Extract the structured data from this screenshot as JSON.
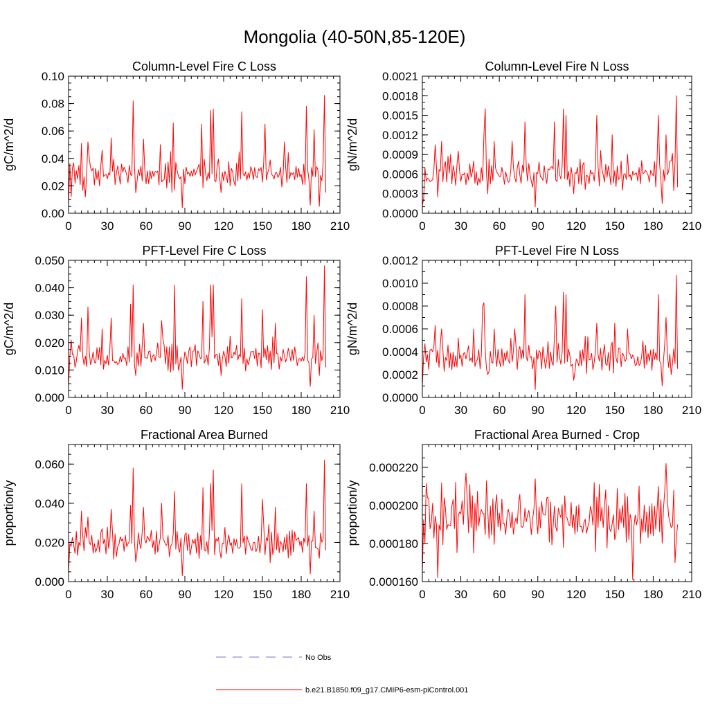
{
  "figure_title": "Mongolia (40-50N,85-120E)",
  "colors": {
    "model": "#ff0000",
    "obs": "#7070d0"
  },
  "legend": {
    "obs_label": "No Obs",
    "model_label": "b.e21.B1850.f09_g17.CMIP6-esm-piControl.001"
  },
  "chart_data": [
    {
      "type": "line",
      "title": "Column-Level Fire C Loss",
      "xlabel": "",
      "ylabel": "gC/m^2/d",
      "xlim": [
        0,
        210
      ],
      "ylim": [
        0,
        0.1
      ],
      "xticks": [
        0,
        30,
        60,
        90,
        120,
        150,
        180,
        210
      ],
      "xtick_labels": [
        "0",
        "30",
        "60",
        "90",
        "120",
        "150",
        "180",
        "210"
      ],
      "yticks": [
        0,
        0.02,
        0.04,
        0.06,
        0.08,
        0.1
      ],
      "ytick_labels": [
        "0.00",
        "0.02",
        "0.04",
        "0.06",
        "0.08",
        "0.10"
      ],
      "yminor": 0.005,
      "series_seed": 11,
      "anchors": [
        [
          0,
          0.006
        ],
        [
          2,
          0.012
        ],
        [
          3,
          0.033
        ],
        [
          8,
          0.035
        ],
        [
          10,
          0.051
        ],
        [
          13,
          0.012
        ],
        [
          15,
          0.052
        ],
        [
          26,
          0.046
        ],
        [
          33,
          0.055
        ],
        [
          47,
          0.035
        ],
        [
          50,
          0.082
        ],
        [
          52,
          0.015
        ],
        [
          58,
          0.054
        ],
        [
          71,
          0.05
        ],
        [
          81,
          0.066
        ],
        [
          86,
          0.025
        ],
        [
          88,
          0.004
        ],
        [
          100,
          0.033
        ],
        [
          103,
          0.065
        ],
        [
          110,
          0.075
        ],
        [
          112,
          0.076
        ],
        [
          118,
          0.015
        ],
        [
          128,
          0.023
        ],
        [
          134,
          0.074
        ],
        [
          152,
          0.065
        ],
        [
          167,
          0.052
        ],
        [
          184,
          0.078
        ],
        [
          187,
          0.006
        ],
        [
          190,
          0.061
        ],
        [
          194,
          0.005
        ],
        [
          198,
          0.086
        ],
        [
          199,
          0.015
        ]
      ],
      "series": [
        {
          "name": "b.e21.B1850.f09_g17.CMIP6-esm-piControl.001",
          "base": 0.028,
          "amp": 0.012,
          "min": 0.008,
          "max": 0.058
        }
      ]
    },
    {
      "type": "line",
      "title": "Column-Level Fire N Loss",
      "xlabel": "",
      "ylabel": "gN/m^2/d",
      "xlim": [
        0,
        210
      ],
      "ylim": [
        0,
        0.0021
      ],
      "xticks": [
        0,
        30,
        60,
        90,
        120,
        150,
        180,
        210
      ],
      "xtick_labels": [
        "0",
        "30",
        "60",
        "90",
        "120",
        "150",
        "180",
        "210"
      ],
      "yticks": [
        0,
        0.0003,
        0.0006,
        0.0009,
        0.0012,
        0.0015,
        0.0018,
        0.0021
      ],
      "ytick_labels": [
        "0.0000",
        "0.0003",
        "0.0006",
        "0.0009",
        "0.0012",
        "0.0015",
        "0.0018",
        "0.0021"
      ],
      "yminor": 0.0001,
      "series_seed": 23,
      "anchors": [
        [
          0,
          0.00012
        ],
        [
          1,
          0.00022
        ],
        [
          2,
          0.0007
        ],
        [
          7,
          0.0005
        ],
        [
          10,
          0.00105
        ],
        [
          12,
          0.00025
        ],
        [
          15,
          0.0011
        ],
        [
          22,
          0.0009
        ],
        [
          28,
          0.00095
        ],
        [
          40,
          0.0008
        ],
        [
          48,
          0.0012
        ],
        [
          49,
          0.0016
        ],
        [
          51,
          0.0003
        ],
        [
          56,
          0.0011
        ],
        [
          70,
          0.0011
        ],
        [
          80,
          0.0014
        ],
        [
          86,
          0.0004
        ],
        [
          88,
          0.0001
        ],
        [
          100,
          0.0007
        ],
        [
          103,
          0.0014
        ],
        [
          110,
          0.0016
        ],
        [
          112,
          0.0015
        ],
        [
          118,
          0.0003
        ],
        [
          136,
          0.0015
        ],
        [
          148,
          0.0012
        ],
        [
          160,
          0.0009
        ],
        [
          184,
          0.0015
        ],
        [
          187,
          0.00015
        ],
        [
          190,
          0.0012
        ],
        [
          194,
          0.0008
        ],
        [
          198,
          0.0018
        ],
        [
          199,
          0.0004
        ]
      ],
      "series": [
        {
          "name": "b.e21.B1850.f09_g17.CMIP6-esm-piControl.001",
          "base": 0.00058,
          "amp": 0.00024,
          "min": 0.00018,
          "max": 0.00115
        }
      ]
    },
    {
      "type": "line",
      "title": "PFT-Level Fire C Loss",
      "xlabel": "",
      "ylabel": "gC/m^2/d",
      "xlim": [
        0,
        210
      ],
      "ylim": [
        0,
        0.05
      ],
      "xticks": [
        0,
        30,
        60,
        90,
        120,
        150,
        180,
        210
      ],
      "xtick_labels": [
        "0",
        "30",
        "60",
        "90",
        "120",
        "150",
        "180",
        "210"
      ],
      "yticks": [
        0,
        0.01,
        0.02,
        0.03,
        0.04,
        0.05
      ],
      "ytick_labels": [
        "0.000",
        "0.010",
        "0.020",
        "0.030",
        "0.040",
        "0.050"
      ],
      "yminor": 0.0025,
      "series_seed": 37,
      "anchors": [
        [
          0,
          0.004
        ],
        [
          2,
          0.021
        ],
        [
          8,
          0.019
        ],
        [
          10,
          0.029
        ],
        [
          15,
          0.033
        ],
        [
          26,
          0.025
        ],
        [
          33,
          0.029
        ],
        [
          48,
          0.034
        ],
        [
          50,
          0.041
        ],
        [
          52,
          0.008
        ],
        [
          58,
          0.027
        ],
        [
          72,
          0.028
        ],
        [
          82,
          0.041
        ],
        [
          86,
          0.012
        ],
        [
          88,
          0.003
        ],
        [
          100,
          0.017
        ],
        [
          104,
          0.035
        ],
        [
          110,
          0.041
        ],
        [
          112,
          0.041
        ],
        [
          118,
          0.008
        ],
        [
          134,
          0.036
        ],
        [
          150,
          0.032
        ],
        [
          160,
          0.027
        ],
        [
          184,
          0.044
        ],
        [
          187,
          0.004
        ],
        [
          190,
          0.03
        ],
        [
          194,
          0.008
        ],
        [
          198,
          0.048
        ],
        [
          199,
          0.011
        ]
      ],
      "series": [
        {
          "name": "b.e21.B1850.f09_g17.CMIP6-esm-piControl.001",
          "base": 0.0145,
          "amp": 0.006,
          "min": 0.005,
          "max": 0.03
        }
      ]
    },
    {
      "type": "line",
      "title": "PFT-Level Fire N Loss",
      "xlabel": "",
      "ylabel": "gN/m^2/d",
      "xlim": [
        0,
        210
      ],
      "ylim": [
        0,
        0.0012
      ],
      "xticks": [
        0,
        30,
        60,
        90,
        120,
        150,
        180,
        210
      ],
      "xtick_labels": [
        "0",
        "30",
        "60",
        "90",
        "120",
        "150",
        "180",
        "210"
      ],
      "yticks": [
        0,
        0.0002,
        0.0004,
        0.0006,
        0.0008,
        0.001,
        0.0012
      ],
      "ytick_labels": [
        "0.0000",
        "0.0002",
        "0.0004",
        "0.0006",
        "0.0008",
        "0.0010",
        "0.0012"
      ],
      "yminor": 0.0001,
      "series_seed": 53,
      "anchors": [
        [
          0,
          0.0001
        ],
        [
          2,
          0.00047
        ],
        [
          8,
          0.0004
        ],
        [
          10,
          0.00063
        ],
        [
          15,
          0.0006
        ],
        [
          28,
          0.00052
        ],
        [
          40,
          0.0006
        ],
        [
          47,
          0.0008
        ],
        [
          48,
          0.00083
        ],
        [
          51,
          0.0002
        ],
        [
          56,
          0.0006
        ],
        [
          72,
          0.0006
        ],
        [
          80,
          0.0009
        ],
        [
          86,
          0.00025
        ],
        [
          88,
          7e-05
        ],
        [
          100,
          0.0004
        ],
        [
          104,
          0.0008
        ],
        [
          110,
          0.00092
        ],
        [
          112,
          0.0009
        ],
        [
          118,
          0.00015
        ],
        [
          136,
          0.00065
        ],
        [
          150,
          0.00065
        ],
        [
          160,
          0.0006
        ],
        [
          184,
          0.0009
        ],
        [
          187,
          0.0001
        ],
        [
          190,
          0.0007
        ],
        [
          194,
          0.0002
        ],
        [
          198,
          0.00107
        ],
        [
          199,
          0.00025
        ]
      ],
      "series": [
        {
          "name": "b.e21.B1850.f09_g17.CMIP6-esm-piControl.001",
          "base": 0.00034,
          "amp": 0.00014,
          "min": 0.00012,
          "max": 0.00066
        }
      ]
    },
    {
      "type": "line",
      "title": "Fractional Area Burned",
      "xlabel": "",
      "ylabel": "proportion/y",
      "xlim": [
        0,
        210
      ],
      "ylim": [
        0,
        0.07
      ],
      "xticks": [
        0,
        30,
        60,
        90,
        120,
        150,
        180,
        210
      ],
      "xtick_labels": [
        "0",
        "30",
        "60",
        "90",
        "120",
        "150",
        "180",
        "210"
      ],
      "yticks": [
        0,
        0.02,
        0.04,
        0.06
      ],
      "ytick_labels": [
        "0.000",
        "0.020",
        "0.040",
        "0.060"
      ],
      "yminor": 0.005,
      "series_seed": 71,
      "anchors": [
        [
          0,
          0.004
        ],
        [
          2,
          0.018
        ],
        [
          8,
          0.02
        ],
        [
          10,
          0.036
        ],
        [
          15,
          0.033
        ],
        [
          26,
          0.027
        ],
        [
          33,
          0.037
        ],
        [
          48,
          0.039
        ],
        [
          50,
          0.058
        ],
        [
          52,
          0.01
        ],
        [
          58,
          0.038
        ],
        [
          72,
          0.04
        ],
        [
          82,
          0.046
        ],
        [
          86,
          0.015
        ],
        [
          88,
          0.003
        ],
        [
          100,
          0.025
        ],
        [
          104,
          0.048
        ],
        [
          110,
          0.05
        ],
        [
          112,
          0.057
        ],
        [
          118,
          0.012
        ],
        [
          134,
          0.05
        ],
        [
          150,
          0.042
        ],
        [
          160,
          0.038
        ],
        [
          184,
          0.05
        ],
        [
          187,
          0.004
        ],
        [
          190,
          0.036
        ],
        [
          194,
          0.012
        ],
        [
          198,
          0.062
        ],
        [
          199,
          0.016
        ]
      ],
      "series": [
        {
          "name": "b.e21.B1850.f09_g17.CMIP6-esm-piControl.001",
          "base": 0.019,
          "amp": 0.008,
          "min": 0.006,
          "max": 0.04
        }
      ]
    },
    {
      "type": "line",
      "title": "Fractional Area Burned - Crop",
      "xlabel": "",
      "ylabel": "proportion/y",
      "xlim": [
        0,
        210
      ],
      "ylim": [
        0.00016,
        0.000232
      ],
      "xticks": [
        0,
        30,
        60,
        90,
        120,
        150,
        180,
        210
      ],
      "xtick_labels": [
        "0",
        "30",
        "60",
        "90",
        "120",
        "150",
        "180",
        "210"
      ],
      "yticks": [
        0.00016,
        0.00018,
        0.0002,
        0.00022
      ],
      "ytick_labels": [
        "0.000160",
        "0.000180",
        "0.000200",
        "0.000220"
      ],
      "yminor": 5e-06,
      "series_seed": 97,
      "anchors": [
        [
          0,
          0.000165
        ],
        [
          2,
          0.00018
        ],
        [
          4,
          0.000204
        ],
        [
          12,
          0.000162
        ],
        [
          20,
          0.00019
        ],
        [
          34,
          0.000217
        ],
        [
          40,
          0.000175
        ],
        [
          50,
          0.000213
        ],
        [
          60,
          0.000196
        ],
        [
          88,
          0.000214
        ],
        [
          96,
          0.000195
        ],
        [
          110,
          0.000178
        ],
        [
          138,
          0.000211
        ],
        [
          150,
          0.000182
        ],
        [
          164,
          0.000161
        ],
        [
          166,
          0.000195
        ],
        [
          184,
          0.00021
        ],
        [
          190,
          0.000222
        ],
        [
          196,
          0.000208
        ],
        [
          197,
          0.00017
        ],
        [
          199,
          0.00019
        ]
      ],
      "series": [
        {
          "name": "b.e21.B1850.f09_g17.CMIP6-esm-piControl.001",
          "base": 0.000192,
          "amp": 1.4e-05,
          "min": 0.000164,
          "max": 0.000216
        }
      ]
    }
  ]
}
